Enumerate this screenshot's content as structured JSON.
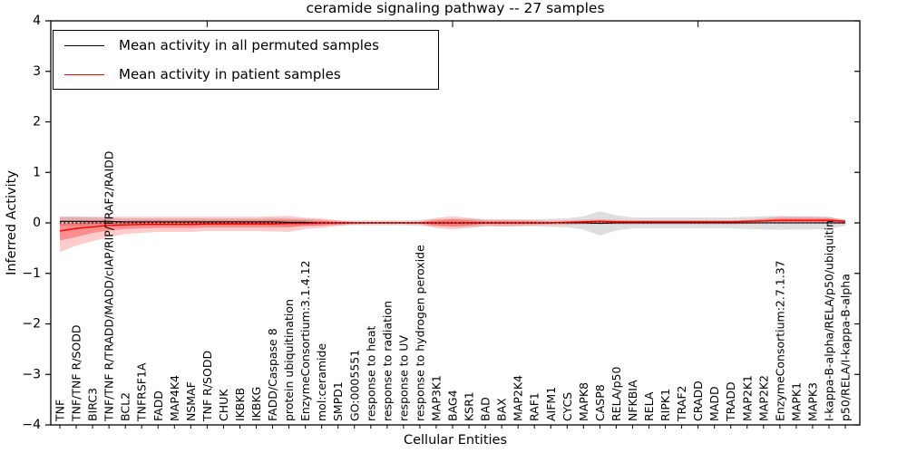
{
  "legend": {
    "items": [
      {
        "label": "Mean activity in all permuted samples",
        "color": "#000000"
      },
      {
        "label": "Mean activity in patient samples",
        "color": "#ff0000"
      }
    ]
  },
  "chart_data": {
    "type": "line",
    "title": "ceramide signaling pathway -- 27 samples",
    "xlabel": "Cellular Entities",
    "ylabel": "Inferred Activity",
    "ylim": [
      -4,
      4
    ],
    "yticks": [
      4,
      3,
      2,
      1,
      0,
      -1,
      -2,
      -3,
      -4
    ],
    "grid": false,
    "legend_position": "upper left",
    "categories": [
      "TNF",
      "TNF/TNF R/SODD",
      "BIRC3",
      "TNF/TNF R/TRADD/MADD/cIAP/RIP/TRAF2/RAIDD",
      "BCL2",
      "TNFRSF1A",
      "FADD",
      "MAP4K4",
      "NSMAF",
      "TNF R/SODD",
      "CHUK",
      "IKBKB",
      "IKBKG",
      "FADD/Caspase 8",
      "protein ubiquitination",
      "EnzymeConsortium:3.1.4.12",
      "mol:ceramide",
      "SMPD1",
      "GO:0005551",
      "response to heat",
      "response to radiation",
      "response to UV",
      "response to hydrogen peroxide",
      "MAP3K1",
      "BAG4",
      "KSR1",
      "BAD",
      "BAX",
      "MAP2K4",
      "RAF1",
      "AIFM1",
      "CYCS",
      "MAPK8",
      "CASP8",
      "RELA/p50",
      "NFKBIA",
      "RELA",
      "RIPK1",
      "TRAF2",
      "CRADD",
      "MADD",
      "TRADD",
      "MAP2K1",
      "MAP2K2",
      "EnzymeConsortium:2.7.1.37",
      "MAPK1",
      "MAPK3",
      "I-kappa-B-alpha/RELA/p50/ubiquitin",
      "p50/RELA/I-kappa-B-alpha"
    ],
    "series": [
      {
        "name": "Mean activity in all permuted samples",
        "color": "#000000",
        "style": "solid",
        "values": [
          0.03,
          0.03,
          0.03,
          0.03,
          0.02,
          0.02,
          0.02,
          0.02,
          0.02,
          0.02,
          0.02,
          0.02,
          0.02,
          0.02,
          0.01,
          0.01,
          0.0,
          0.0,
          0.0,
          0.0,
          0.0,
          0.0,
          0.0,
          0.0,
          0.0,
          0.0,
          0.0,
          0.0,
          0.0,
          0.0,
          0.0,
          0.0,
          0.0,
          -0.01,
          0.0,
          0.0,
          0.0,
          0.0,
          0.0,
          0.0,
          0.0,
          0.0,
          0.0,
          0.0,
          0.0,
          0.0,
          0.0,
          0.0,
          0.0
        ]
      },
      {
        "name": "Mean activity in patient samples",
        "color": "#ff0000",
        "style": "solid",
        "values": [
          -0.16,
          -0.11,
          -0.08,
          -0.05,
          -0.04,
          -0.03,
          -0.03,
          -0.03,
          -0.03,
          -0.02,
          -0.02,
          -0.02,
          -0.02,
          -0.02,
          -0.01,
          -0.01,
          0.0,
          0.0,
          0.0,
          0.0,
          0.0,
          0.0,
          0.0,
          0.0,
          0.0,
          0.0,
          0.0,
          0.0,
          0.0,
          0.0,
          0.0,
          0.01,
          0.02,
          0.03,
          0.02,
          0.02,
          0.02,
          0.02,
          0.02,
          0.02,
          0.02,
          0.02,
          0.03,
          0.04,
          0.05,
          0.05,
          0.05,
          0.05,
          0.03
        ]
      }
    ],
    "reference_line": {
      "y": 0,
      "style": "dotted",
      "color": "#000000"
    },
    "bands": [
      {
        "name": "permuted-spread",
        "color": "#000000",
        "opacity": 0.13,
        "upper": [
          0.12,
          0.12,
          0.11,
          0.1,
          0.09,
          0.09,
          0.09,
          0.09,
          0.09,
          0.09,
          0.09,
          0.09,
          0.09,
          0.1,
          0.09,
          0.08,
          0.06,
          0.05,
          0.05,
          0.05,
          0.05,
          0.05,
          0.06,
          0.07,
          0.08,
          0.08,
          0.07,
          0.07,
          0.07,
          0.07,
          0.08,
          0.09,
          0.13,
          0.23,
          0.15,
          0.11,
          0.11,
          0.11,
          0.11,
          0.11,
          0.11,
          0.11,
          0.12,
          0.13,
          0.14,
          0.13,
          0.13,
          0.12,
          0.06
        ],
        "lower": [
          -0.06,
          -0.06,
          -0.05,
          -0.05,
          -0.05,
          -0.05,
          -0.05,
          -0.05,
          -0.05,
          -0.05,
          -0.05,
          -0.05,
          -0.05,
          -0.06,
          -0.07,
          -0.06,
          -0.06,
          -0.05,
          -0.05,
          -0.05,
          -0.05,
          -0.05,
          -0.06,
          -0.07,
          -0.08,
          -0.08,
          -0.07,
          -0.07,
          -0.07,
          -0.07,
          -0.08,
          -0.09,
          -0.13,
          -0.25,
          -0.15,
          -0.11,
          -0.11,
          -0.11,
          -0.11,
          -0.11,
          -0.11,
          -0.11,
          -0.12,
          -0.13,
          -0.14,
          -0.13,
          -0.13,
          -0.12,
          -0.06
        ]
      },
      {
        "name": "patient-spread-outer",
        "color": "#ff0000",
        "opacity": 0.2,
        "upper": [
          0.12,
          0.12,
          0.12,
          0.12,
          0.12,
          0.12,
          0.12,
          0.12,
          0.12,
          0.12,
          0.12,
          0.12,
          0.12,
          0.13,
          0.14,
          0.1,
          0.09,
          0.05,
          0.02,
          0.02,
          0.02,
          0.02,
          0.03,
          0.1,
          0.13,
          0.1,
          0.06,
          0.06,
          0.06,
          0.05,
          0.04,
          0.05,
          0.06,
          0.07,
          0.06,
          0.05,
          0.05,
          0.05,
          0.05,
          0.05,
          0.05,
          0.05,
          0.06,
          0.09,
          0.12,
          0.12,
          0.12,
          0.11,
          0.06
        ],
        "lower": [
          -0.58,
          -0.45,
          -0.36,
          -0.28,
          -0.22,
          -0.2,
          -0.18,
          -0.18,
          -0.18,
          -0.16,
          -0.16,
          -0.16,
          -0.16,
          -0.17,
          -0.18,
          -0.12,
          -0.1,
          -0.06,
          -0.03,
          -0.02,
          -0.02,
          -0.02,
          -0.03,
          -0.1,
          -0.13,
          -0.1,
          -0.06,
          -0.07,
          -0.06,
          -0.05,
          -0.04,
          -0.04,
          -0.03,
          -0.02,
          -0.03,
          -0.03,
          -0.03,
          -0.03,
          -0.03,
          -0.03,
          -0.03,
          -0.03,
          -0.02,
          -0.01,
          -0.01,
          -0.01,
          -0.01,
          -0.02,
          -0.02
        ]
      },
      {
        "name": "patient-spread-inner",
        "color": "#ff0000",
        "opacity": 0.3,
        "upper": [
          -0.02,
          0.0,
          0.02,
          0.03,
          0.04,
          0.05,
          0.05,
          0.05,
          0.05,
          0.05,
          0.05,
          0.05,
          0.05,
          0.06,
          0.06,
          0.05,
          0.04,
          0.02,
          0.01,
          0.01,
          0.01,
          0.01,
          0.01,
          0.05,
          0.07,
          0.05,
          0.03,
          0.03,
          0.03,
          0.03,
          0.02,
          0.03,
          0.04,
          0.05,
          0.04,
          0.04,
          0.04,
          0.04,
          0.04,
          0.04,
          0.04,
          0.04,
          0.05,
          0.06,
          0.08,
          0.08,
          0.08,
          0.08,
          0.05
        ],
        "lower": [
          -0.35,
          -0.28,
          -0.2,
          -0.15,
          -0.12,
          -0.11,
          -0.1,
          -0.1,
          -0.1,
          -0.09,
          -0.09,
          -0.09,
          -0.09,
          -0.09,
          -0.09,
          -0.06,
          -0.05,
          -0.03,
          -0.01,
          -0.01,
          -0.01,
          -0.01,
          -0.01,
          -0.05,
          -0.07,
          -0.05,
          -0.02,
          -0.02,
          -0.02,
          -0.02,
          -0.01,
          -0.01,
          0.0,
          0.01,
          0.0,
          0.0,
          0.0,
          0.0,
          0.0,
          0.0,
          0.0,
          0.0,
          0.01,
          0.02,
          0.02,
          0.02,
          0.02,
          0.02,
          0.01
        ]
      }
    ]
  }
}
